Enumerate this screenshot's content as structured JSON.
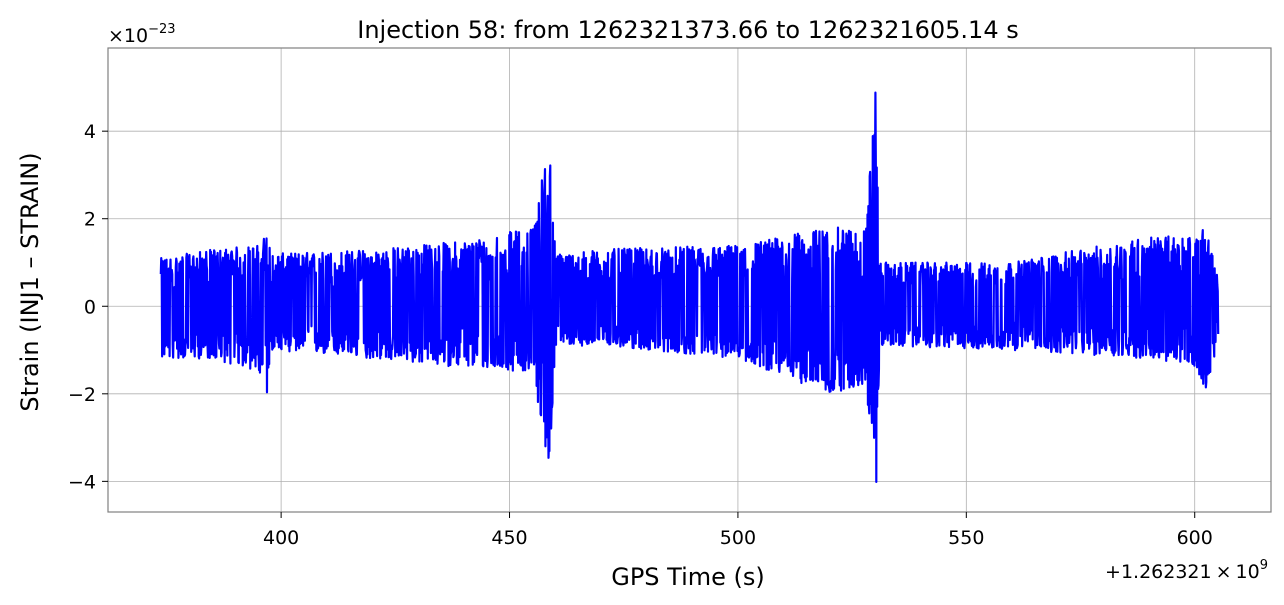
{
  "chart_data": {
    "type": "line",
    "title": "Injection 58: from 1262321373.66 to 1262321605.14 s",
    "xlabel": "GPS Time (s)",
    "ylabel": "Strain (INJ1 – STRAIN)",
    "x_offset_label": "+1.262321",
    "x_offset_exponent_label": "9",
    "x_offset_times": "×",
    "x_offset_base": "10",
    "y_multiplier_prefix": "×10",
    "y_multiplier_exponent": "−23",
    "x_start": 373.66,
    "x_end": 605.14,
    "xlim": [
      362.1,
      616.7
    ],
    "ylim": [
      -4.7,
      5.9
    ],
    "x_ticks": [
      400,
      450,
      500,
      550,
      600
    ],
    "x_tick_labels": [
      "400",
      "450",
      "500",
      "550",
      "600"
    ],
    "y_ticks": [
      -4,
      -2,
      0,
      2,
      4
    ],
    "y_tick_labels": [
      "−4",
      "−2",
      "0",
      "2",
      "4"
    ],
    "grid": true,
    "series": [
      {
        "color": "#0000ff",
        "envelope": [
          {
            "x": 373.66,
            "min": -1.2,
            "max": 1.1
          },
          {
            "x": 385,
            "min": -1.2,
            "max": 1.3
          },
          {
            "x": 395,
            "min": -1.5,
            "max": 1.4
          },
          {
            "x": 397,
            "min": -2.2,
            "max": 1.7
          },
          {
            "x": 398,
            "min": -1.0,
            "max": 1.2
          },
          {
            "x": 420,
            "min": -1.2,
            "max": 1.3
          },
          {
            "x": 440,
            "min": -1.4,
            "max": 1.5
          },
          {
            "x": 455,
            "min": -1.5,
            "max": 1.8
          },
          {
            "x": 459,
            "min": -3.9,
            "max": 4.0
          },
          {
            "x": 460,
            "min": -0.9,
            "max": 1.2
          },
          {
            "x": 470,
            "min": -0.9,
            "max": 1.3
          },
          {
            "x": 500,
            "min": -1.2,
            "max": 1.4
          },
          {
            "x": 520,
            "min": -2.0,
            "max": 1.8
          },
          {
            "x": 528,
            "min": -1.8,
            "max": 1.8
          },
          {
            "x": 530.3,
            "min": -4.2,
            "max": 5.4
          },
          {
            "x": 531,
            "min": -0.9,
            "max": 1.0
          },
          {
            "x": 560,
            "min": -1.0,
            "max": 1.0
          },
          {
            "x": 590,
            "min": -1.2,
            "max": 1.6
          },
          {
            "x": 600,
            "min": -1.4,
            "max": 1.6
          },
          {
            "x": 602.5,
            "min": -1.9,
            "max": 1.8
          },
          {
            "x": 605.14,
            "min": -0.8,
            "max": 0.6
          }
        ]
      }
    ]
  }
}
